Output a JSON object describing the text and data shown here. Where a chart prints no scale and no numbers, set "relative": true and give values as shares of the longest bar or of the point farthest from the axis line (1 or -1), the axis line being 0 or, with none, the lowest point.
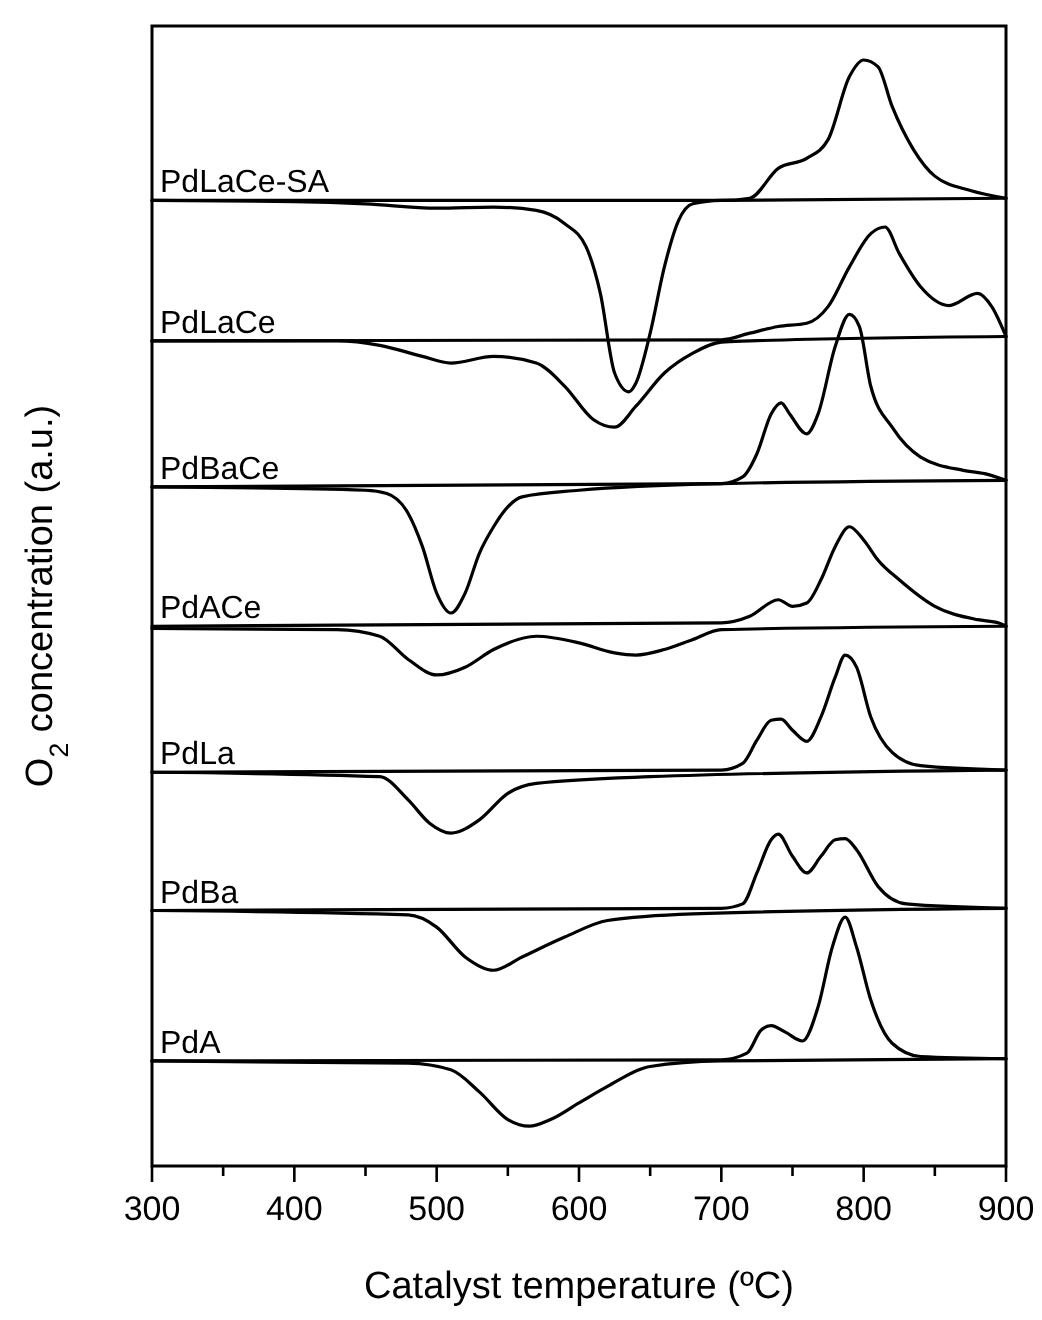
{
  "chart_data": {
    "type": "line",
    "relative": true,
    "xlabel": "Catalyst temperature (ºC)",
    "ylabel": "O$_{2}$ concentration (a.u.)",
    "xlim": [
      300,
      900
    ],
    "xticks": [
      300,
      {
        "value": 350,
        "label": null
      },
      400,
      {
        "value": 450,
        "label": null
      },
      500,
      {
        "value": 550,
        "label": null
      },
      600,
      {
        "value": 650,
        "label": null
      },
      700,
      {
        "value": 750,
        "label": null
      },
      800,
      {
        "value": 850,
        "label": null
      },
      900
    ],
    "legend": false,
    "grid": false,
    "marker": "none",
    "line_style": "solid",
    "tick_labels": "x",
    "series": [
      {
        "name": "PdLaCe-SA",
        "color": "#000000",
        "x": [
          300,
          700,
          720,
          740,
          760,
          775,
          790,
          800,
          810,
          820,
          835,
          850,
          875,
          900
        ],
        "values": [
          0.873,
          0.873,
          0.875,
          0.902,
          0.911,
          0.928,
          0.985,
          1.0,
          0.994,
          0.958,
          0.919,
          0.895,
          0.882,
          0.875
        ]
      },
      {
        "color": "#000000",
        "x": [
          300,
          400,
          450,
          500,
          540,
          570,
          590,
          605,
          615,
          625,
          635,
          640,
          650,
          660,
          670,
          680,
          700,
          900
        ],
        "values": [
          0.873,
          0.872,
          0.87,
          0.866,
          0.867,
          0.864,
          0.852,
          0.831,
          0.789,
          0.717,
          0.7,
          0.708,
          0.753,
          0.813,
          0.855,
          0.87,
          0.873,
          0.875
        ]
      },
      {
        "name": "PdLaCe",
        "color": "#000000",
        "x": [
          300,
          700,
          720,
          740,
          760,
          775,
          790,
          805,
          815,
          825,
          840,
          860,
          880,
          890,
          900
        ],
        "values": [
          0.746,
          0.747,
          0.753,
          0.759,
          0.762,
          0.777,
          0.813,
          0.843,
          0.849,
          0.825,
          0.795,
          0.778,
          0.789,
          0.777,
          0.75
        ]
      },
      {
        "color": "#000000",
        "x": [
          300,
          430,
          460,
          490,
          510,
          540,
          570,
          590,
          610,
          625,
          640,
          660,
          680,
          700,
          720,
          900
        ],
        "values": [
          0.746,
          0.746,
          0.742,
          0.732,
          0.726,
          0.732,
          0.726,
          0.705,
          0.675,
          0.668,
          0.687,
          0.717,
          0.735,
          0.745,
          0.746,
          0.75
        ]
      },
      {
        "name": "PdBaCe",
        "color": "#000000",
        "x": [
          300,
          700,
          715,
          725,
          735,
          742,
          748,
          760,
          768,
          780,
          790,
          797,
          805,
          820,
          840,
          870,
          885,
          900
        ],
        "values": [
          0.614,
          0.617,
          0.623,
          0.644,
          0.68,
          0.69,
          0.68,
          0.662,
          0.68,
          0.741,
          0.77,
          0.759,
          0.705,
          0.668,
          0.641,
          0.629,
          0.626,
          0.62
        ]
      },
      {
        "color": "#000000",
        "x": [
          300,
          450,
          465,
          480,
          490,
          500,
          510,
          520,
          530,
          540,
          550,
          560,
          600,
          700,
          900
        ],
        "values": [
          0.614,
          0.611,
          0.608,
          0.59,
          0.56,
          0.518,
          0.5,
          0.518,
          0.554,
          0.578,
          0.596,
          0.605,
          0.611,
          0.617,
          0.62
        ]
      },
      {
        "name": "PdACe",
        "color": "#000000",
        "x": [
          300,
          700,
          720,
          740,
          750,
          760,
          770,
          780,
          790,
          800,
          810,
          825,
          850,
          880,
          895,
          900
        ],
        "values": [
          0.488,
          0.491,
          0.497,
          0.512,
          0.506,
          0.509,
          0.53,
          0.56,
          0.578,
          0.566,
          0.548,
          0.53,
          0.506,
          0.494,
          0.491,
          0.488
        ]
      },
      {
        "color": "#000000",
        "x": [
          300,
          430,
          460,
          480,
          500,
          520,
          540,
          570,
          600,
          625,
          640,
          660,
          680,
          700,
          900
        ],
        "values": [
          0.486,
          0.485,
          0.479,
          0.458,
          0.444,
          0.451,
          0.467,
          0.479,
          0.473,
          0.464,
          0.462,
          0.467,
          0.476,
          0.485,
          0.488
        ]
      },
      {
        "name": "PdLa",
        "color": "#000000",
        "x": [
          300,
          700,
          715,
          725,
          735,
          742,
          750,
          760,
          770,
          780,
          787,
          795,
          805,
          820,
          840,
          900
        ],
        "values": [
          0.356,
          0.358,
          0.364,
          0.385,
          0.403,
          0.404,
          0.394,
          0.384,
          0.406,
          0.442,
          0.462,
          0.451,
          0.406,
          0.374,
          0.362,
          0.358
        ]
      },
      {
        "color": "#000000",
        "x": [
          300,
          460,
          480,
          495,
          510,
          530,
          550,
          570,
          650,
          900
        ],
        "values": [
          0.356,
          0.352,
          0.331,
          0.31,
          0.301,
          0.313,
          0.337,
          0.346,
          0.352,
          0.358
        ]
      },
      {
        "name": "PdBa",
        "color": "#000000",
        "x": [
          300,
          700,
          715,
          725,
          735,
          740,
          750,
          760,
          770,
          780,
          787,
          795,
          810,
          830,
          900
        ],
        "values": [
          0.231,
          0.233,
          0.237,
          0.265,
          0.295,
          0.3,
          0.28,
          0.265,
          0.28,
          0.295,
          0.296,
          0.286,
          0.253,
          0.237,
          0.233
        ]
      },
      {
        "color": "#000000",
        "x": [
          300,
          480,
          500,
          520,
          540,
          560,
          590,
          620,
          680,
          900
        ],
        "values": [
          0.231,
          0.227,
          0.216,
          0.189,
          0.177,
          0.189,
          0.207,
          0.222,
          0.228,
          0.233
        ]
      },
      {
        "name": "PdA",
        "color": "#000000",
        "x": [
          300,
          700,
          718,
          728,
          735,
          745,
          757,
          768,
          778,
          787,
          795,
          805,
          820,
          840,
          900
        ],
        "values": [
          0.095,
          0.096,
          0.102,
          0.123,
          0.127,
          0.121,
          0.113,
          0.144,
          0.198,
          0.225,
          0.198,
          0.15,
          0.111,
          0.099,
          0.097
        ]
      },
      {
        "color": "#000000",
        "x": [
          300,
          480,
          510,
          530,
          550,
          565,
          580,
          600,
          620,
          650,
          700,
          900
        ],
        "values": [
          0.095,
          0.093,
          0.087,
          0.067,
          0.042,
          0.036,
          0.042,
          0.057,
          0.072,
          0.09,
          0.095,
          0.097
        ]
      }
    ]
  }
}
